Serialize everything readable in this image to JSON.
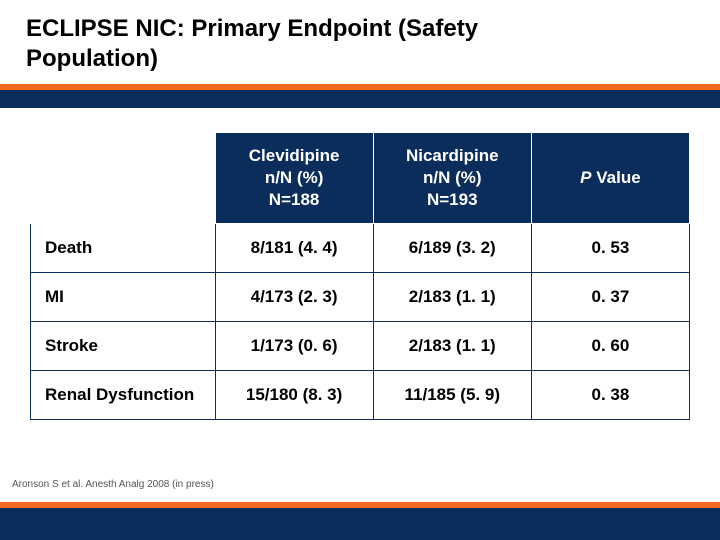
{
  "title_line1": "ECLIPSE NIC: Primary Endpoint (Safety",
  "title_line2": "Population)",
  "colors": {
    "navy": "#0b2d5b",
    "orange": "#f26a21",
    "white": "#ffffff",
    "black": "#000000"
  },
  "table": {
    "headers": {
      "blank": "",
      "col_a_l1": "Clevidipine",
      "col_a_l2": "n/N (%)",
      "col_a_l3": "N=188",
      "col_b_l1": "Nicardipine",
      "col_b_l2": "n/N (%)",
      "col_b_l3": "N=193",
      "col_p_prefix": "P",
      "col_p_rest": " Value"
    },
    "rows": [
      {
        "label": "Death",
        "a": "8/181 (4. 4)",
        "b": "6/189 (3. 2)",
        "p": "0. 53"
      },
      {
        "label": "MI",
        "a": "4/173 (2. 3)",
        "b": "2/183 (1. 1)",
        "p": "0. 37"
      },
      {
        "label": "Stroke",
        "a": "1/173 (0. 6)",
        "b": "2/183 (1. 1)",
        "p": "0. 60"
      },
      {
        "label": "Renal Dysfunction",
        "a": "15/180 (8. 3)",
        "b": "11/185 (5. 9)",
        "p": "0. 38"
      }
    ]
  },
  "citation": "Aronson S et al. Anesth Analg 2008 (in press)"
}
